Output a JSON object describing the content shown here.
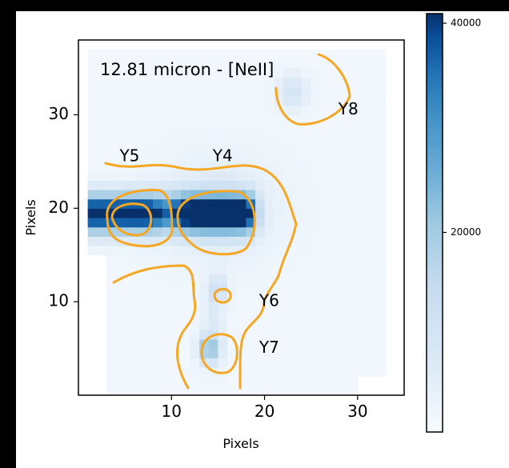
{
  "chart_data": {
    "type": "heatmap",
    "annotation_title": "12.81 micron - [NeII]",
    "xlabel": "Pixels",
    "ylabel": "Pixels",
    "xlim": [
      0,
      35
    ],
    "ylim": [
      0,
      38
    ],
    "x_ticks": [
      10,
      20,
      30
    ],
    "y_ticks": [
      10,
      20,
      30
    ],
    "colorbar": {
      "colormap": "Blues",
      "range": [
        0,
        40000
      ],
      "tick_values": [
        20000,
        40000
      ],
      "tick_labels": [
        "20000",
        "40000"
      ]
    },
    "contour_color": "#f5a623",
    "sources": [
      {
        "label": "Y4",
        "x": 15.0,
        "y": 19.5,
        "peak": 42000
      },
      {
        "label": "Y5",
        "x": 5.5,
        "y": 19.5,
        "peak": 40000
      },
      {
        "label": "Y6",
        "x": 15.0,
        "y": 11.5,
        "peak": 12000
      },
      {
        "label": "Y7",
        "x": 14.0,
        "y": 5.0,
        "peak": 20000
      },
      {
        "label": "Y8",
        "x": 23.0,
        "y": 32.5,
        "peak": 9000
      }
    ],
    "source_labels": [
      {
        "text": "Y5",
        "x": 5.5,
        "y": 25.5
      },
      {
        "text": "Y4",
        "x": 15.5,
        "y": 25.5
      },
      {
        "text": "Y6",
        "x": 20.5,
        "y": 10.0
      },
      {
        "text": "Y7",
        "x": 20.5,
        "y": 5.0
      },
      {
        "text": "Y8",
        "x": 29.0,
        "y": 30.5
      }
    ]
  }
}
